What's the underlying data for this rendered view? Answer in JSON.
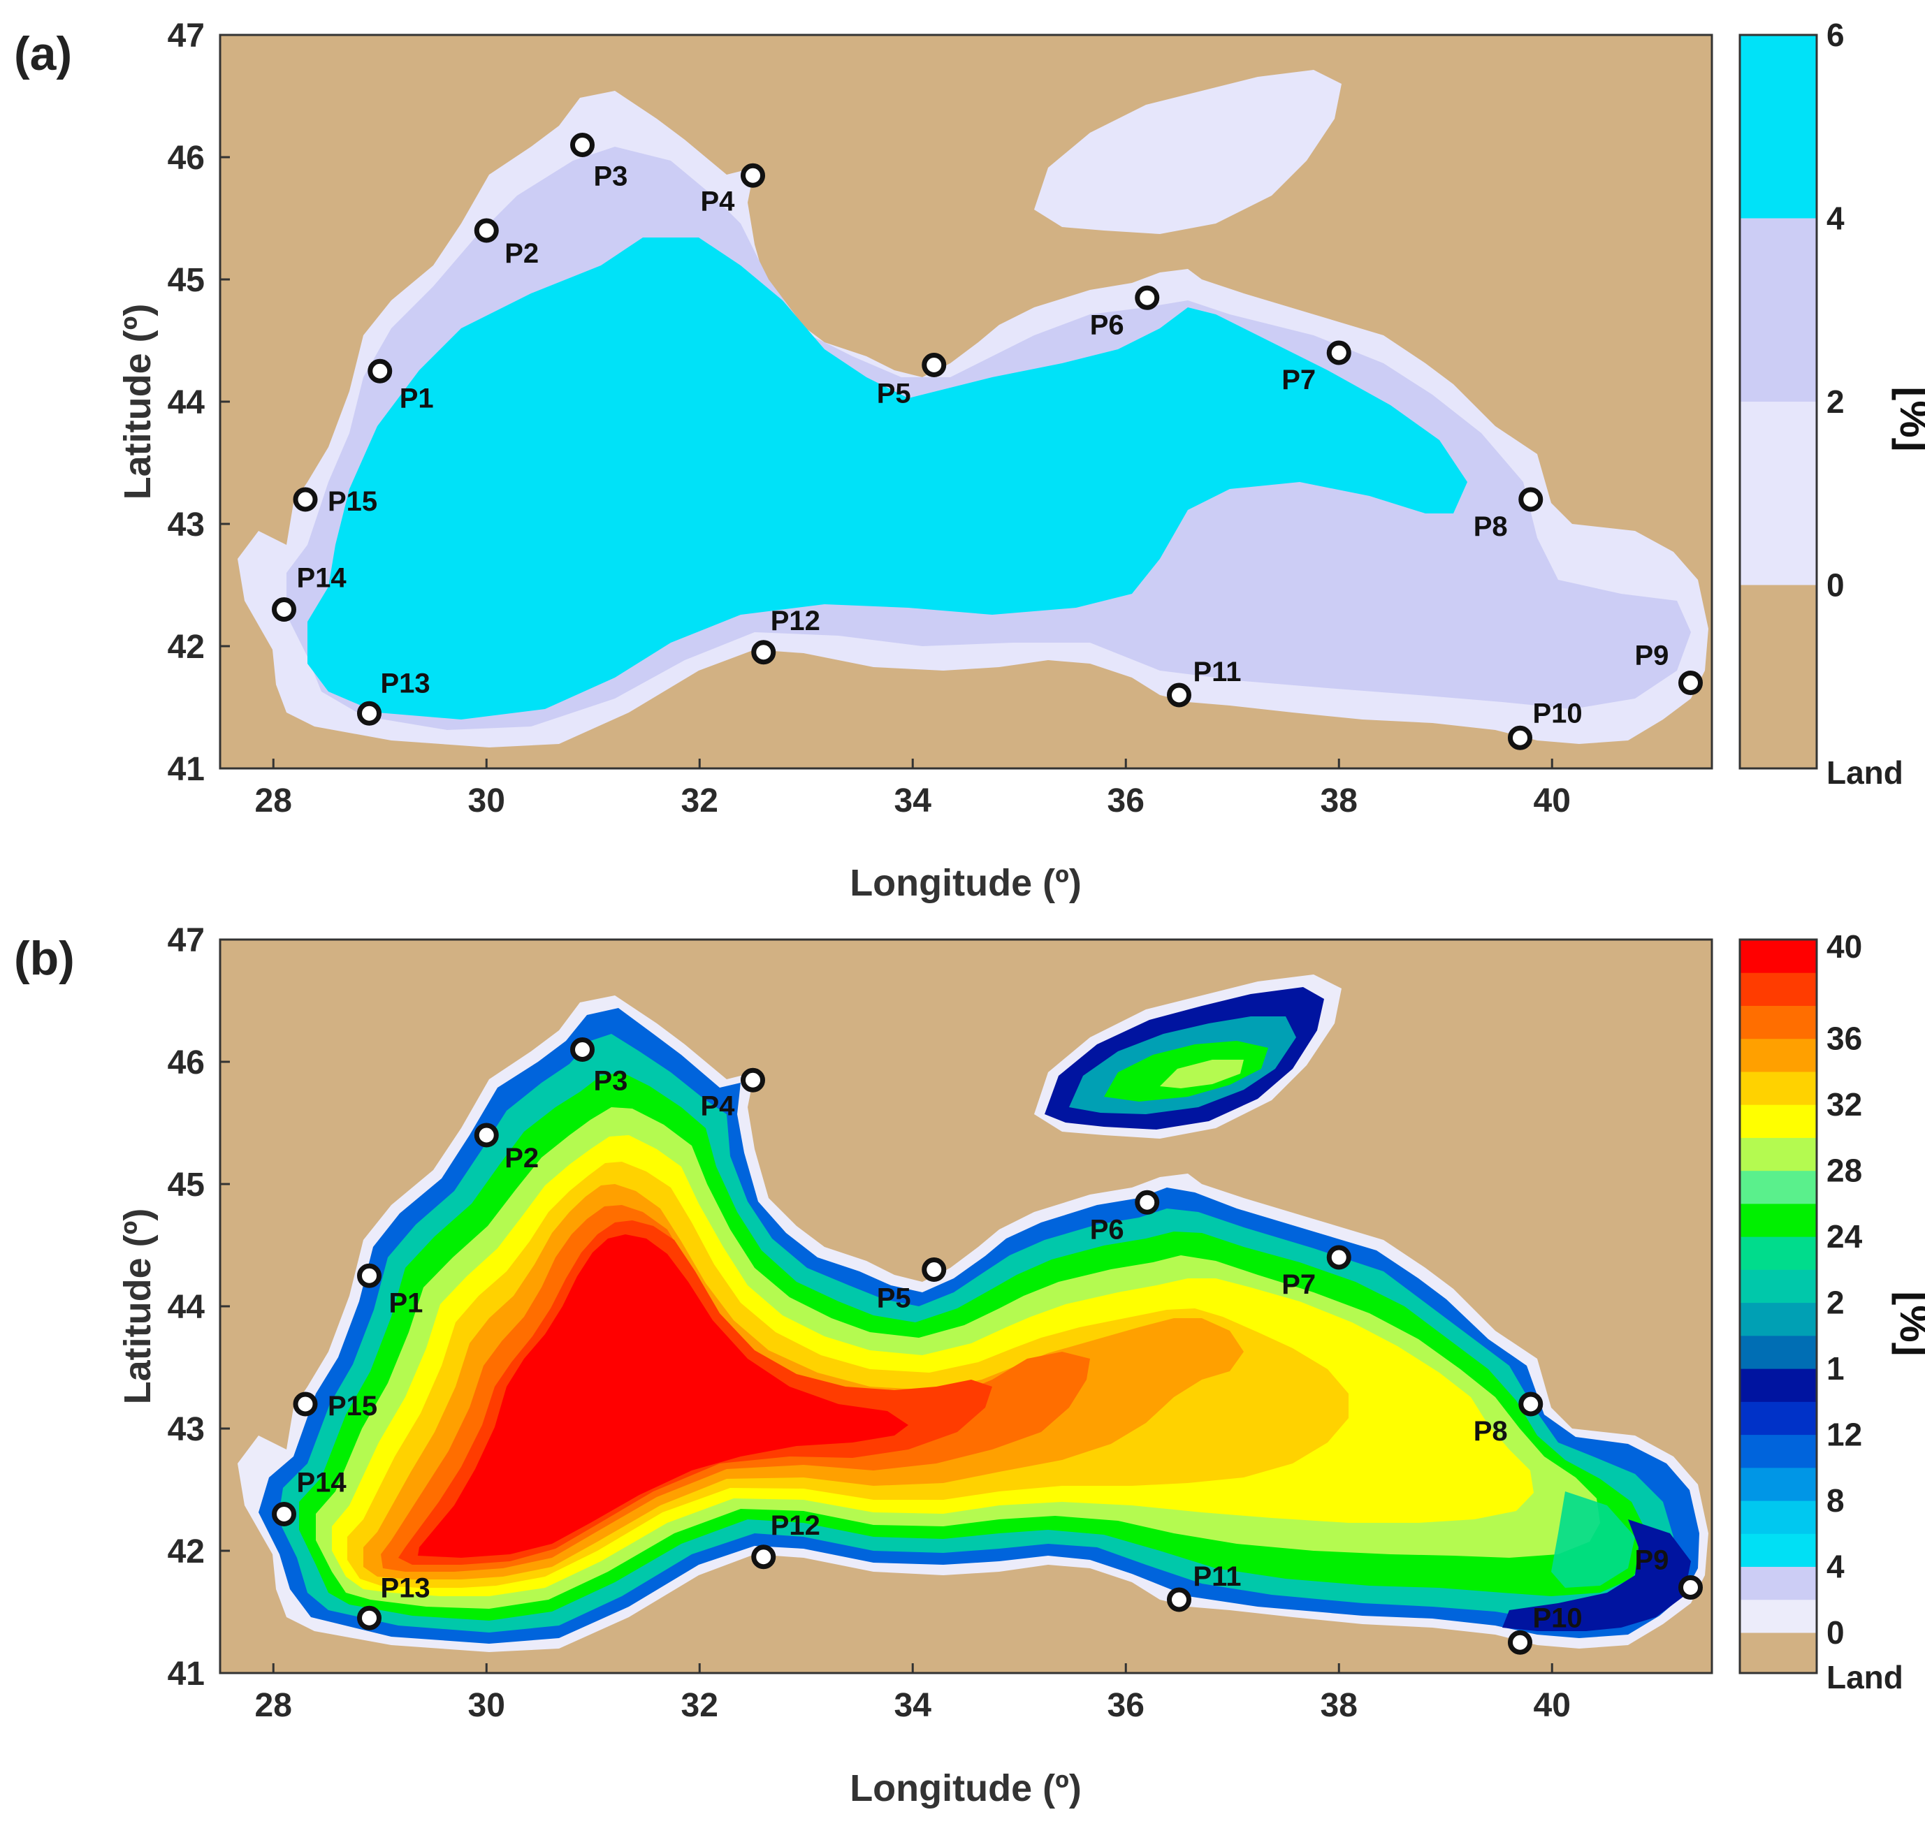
{
  "figure": {
    "land_color": "#d2b183",
    "panels": [
      {
        "id": "a",
        "label": "(a)",
        "xlabel": "Longitude (º)",
        "ylabel": "Latitude (º)",
        "x_ticks": [
          "28",
          "30",
          "32",
          "34",
          "36",
          "38",
          "40"
        ],
        "y_ticks": [
          "41",
          "42",
          "43",
          "44",
          "45",
          "46",
          "47"
        ],
        "xlim": [
          27.5,
          41.5
        ],
        "ylim": [
          41,
          47
        ],
        "colorbar": {
          "title": "[%]",
          "tick_labels": [
            "Land",
            "0",
            "2",
            "4",
            "6"
          ],
          "bands": [
            {
              "range": "Land",
              "color": "#d2b183"
            },
            {
              "range": "0-2",
              "color": "#e6e6fb"
            },
            {
              "range": "2-4",
              "color": "#cccdf5"
            },
            {
              "range": "4-6",
              "color": "#00e2f8"
            }
          ]
        },
        "points": [
          {
            "name": "P1",
            "lon": 29.0,
            "lat": 44.25
          },
          {
            "name": "P2",
            "lon": 30.0,
            "lat": 45.4
          },
          {
            "name": "P3",
            "lon": 30.9,
            "lat": 46.1
          },
          {
            "name": "P4",
            "lon": 32.5,
            "lat": 45.85
          },
          {
            "name": "P5",
            "lon": 34.2,
            "lat": 44.3
          },
          {
            "name": "P6",
            "lon": 36.2,
            "lat": 44.85
          },
          {
            "name": "P7",
            "lon": 38.0,
            "lat": 44.4
          },
          {
            "name": "P8",
            "lon": 39.8,
            "lat": 43.2
          },
          {
            "name": "P9",
            "lon": 41.3,
            "lat": 41.7
          },
          {
            "name": "P10",
            "lon": 39.7,
            "lat": 41.25
          },
          {
            "name": "P11",
            "lon": 36.5,
            "lat": 41.6
          },
          {
            "name": "P12",
            "lon": 32.6,
            "lat": 41.95
          },
          {
            "name": "P13",
            "lon": 28.9,
            "lat": 41.45
          },
          {
            "name": "P14",
            "lon": 28.1,
            "lat": 42.3
          },
          {
            "name": "P15",
            "lon": 28.3,
            "lat": 43.2
          }
        ]
      },
      {
        "id": "b",
        "label": "(b)",
        "xlabel": "Longitude (º)",
        "ylabel": "Latitude (º)",
        "x_ticks": [
          "28",
          "30",
          "32",
          "34",
          "36",
          "38",
          "40"
        ],
        "y_ticks": [
          "41",
          "42",
          "43",
          "44",
          "45",
          "46",
          "47"
        ],
        "xlim": [
          27.5,
          41.5
        ],
        "ylim": [
          41,
          47
        ],
        "colorbar": {
          "title": "[%]",
          "tick_labels": [
            "Land",
            "0",
            "4",
            "8",
            "12",
            "1",
            "2",
            "24",
            "28",
            "32",
            "36",
            "40"
          ],
          "bands": [
            {
              "range": "Land",
              "color": "#d2b183"
            },
            {
              "range": "0-2",
              "color": "#ececfa"
            },
            {
              "range": "2-4",
              "color": "#cccdf5"
            },
            {
              "range": "4-6",
              "color": "#00e0f5"
            },
            {
              "range": "6-8",
              "color": "#00c8f0"
            },
            {
              "range": "8-10",
              "color": "#0096e6"
            },
            {
              "range": "10-12",
              "color": "#0064dc"
            },
            {
              "range": "12-14",
              "color": "#0032c8"
            },
            {
              "range": "14-16",
              "color": "#0014a0"
            },
            {
              "range": "16-18",
              "color": "#006eb4"
            },
            {
              "range": "18-20",
              "color": "#00a0b4"
            },
            {
              "range": "20-22",
              "color": "#00c8aa"
            },
            {
              "range": "22-24",
              "color": "#00dc8c"
            },
            {
              "range": "24-26",
              "color": "#00f000"
            },
            {
              "range": "26-28",
              "color": "#5af08c"
            },
            {
              "range": "28-30",
              "color": "#b4fa50"
            },
            {
              "range": "30-32",
              "color": "#ffff00"
            },
            {
              "range": "32-34",
              "color": "#ffd200"
            },
            {
              "range": "34-36",
              "color": "#ffa000"
            },
            {
              "range": "36-38",
              "color": "#ff6e00"
            },
            {
              "range": "38-40",
              "color": "#ff3c00"
            },
            {
              "range": "40+",
              "color": "#ff0000"
            }
          ]
        },
        "points": [
          {
            "name": "P1",
            "lon": 28.9,
            "lat": 44.25
          },
          {
            "name": "P2",
            "lon": 30.0,
            "lat": 45.4
          },
          {
            "name": "P3",
            "lon": 30.9,
            "lat": 46.1
          },
          {
            "name": "P4",
            "lon": 32.5,
            "lat": 45.85
          },
          {
            "name": "P5",
            "lon": 34.2,
            "lat": 44.3
          },
          {
            "name": "P6",
            "lon": 36.2,
            "lat": 44.85
          },
          {
            "name": "P7",
            "lon": 38.0,
            "lat": 44.4
          },
          {
            "name": "P8",
            "lon": 39.8,
            "lat": 43.2
          },
          {
            "name": "P9",
            "lon": 41.3,
            "lat": 41.7
          },
          {
            "name": "P10",
            "lon": 39.7,
            "lat": 41.25
          },
          {
            "name": "P11",
            "lon": 36.5,
            "lat": 41.6
          },
          {
            "name": "P12",
            "lon": 32.6,
            "lat": 41.95
          },
          {
            "name": "P13",
            "lon": 28.9,
            "lat": 41.45
          },
          {
            "name": "P14",
            "lon": 28.1,
            "lat": 42.3
          },
          {
            "name": "P15",
            "lon": 28.3,
            "lat": 43.2
          }
        ]
      }
    ]
  }
}
